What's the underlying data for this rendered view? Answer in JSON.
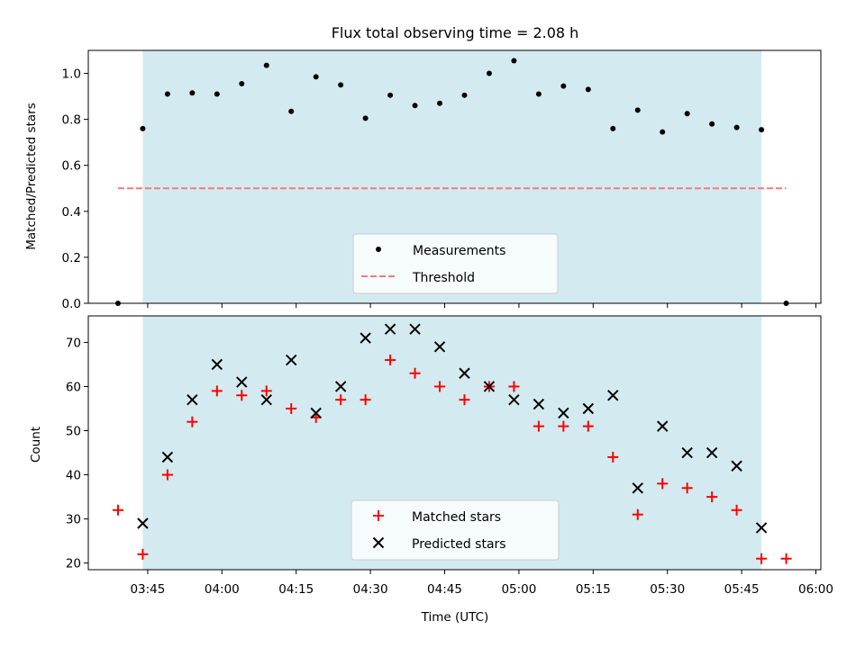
{
  "title": "Flux total observing time = 2.08 h",
  "colors": {
    "shade": "#d3eaf0",
    "threshold": "#f27b7b",
    "matched": "#ff0000",
    "predicted": "#000000",
    "measurement": "#000000"
  },
  "chart_data": [
    {
      "type": "scatter",
      "ylabel": "Matched/Predicted stars",
      "ylim": [
        0,
        1.1
      ],
      "yticks": [
        "0.0",
        "0.2",
        "0.4",
        "0.6",
        "0.8",
        "1.0"
      ],
      "observing_window": [
        "03:44",
        "05:49"
      ],
      "legend": {
        "placement": "lower-center",
        "entries": [
          "Measurements",
          "Threshold"
        ]
      },
      "threshold": {
        "name": "Threshold",
        "value": 0.5,
        "x_range": [
          "03:39",
          "05:54"
        ]
      },
      "series": [
        {
          "name": "Measurements",
          "x": [
            "03:39",
            "03:44",
            "03:49",
            "03:54",
            "03:59",
            "04:04",
            "04:09",
            "04:14",
            "04:19",
            "04:24",
            "04:29",
            "04:34",
            "04:39",
            "04:44",
            "04:49",
            "04:54",
            "04:59",
            "05:04",
            "05:09",
            "05:14",
            "05:19",
            "05:24",
            "05:29",
            "05:34",
            "05:39",
            "05:44",
            "05:49",
            "05:54"
          ],
          "values": [
            0.0,
            0.76,
            0.91,
            0.915,
            0.91,
            0.955,
            1.035,
            0.835,
            0.985,
            0.95,
            0.805,
            0.905,
            0.86,
            0.87,
            0.905,
            1.0,
            1.055,
            0.91,
            0.945,
            0.93,
            0.76,
            0.84,
            0.745,
            0.825,
            0.78,
            0.765,
            0.755,
            0.0
          ]
        }
      ]
    },
    {
      "type": "scatter",
      "xlabel": "Time (UTC)",
      "ylabel": "Count",
      "ylim": [
        18.5,
        76
      ],
      "yticks": [
        "20",
        "30",
        "40",
        "50",
        "60",
        "70"
      ],
      "xticks": [
        "03:45",
        "04:00",
        "04:15",
        "04:30",
        "04:45",
        "05:00",
        "05:15",
        "05:30",
        "05:45",
        "06:00"
      ],
      "observing_window": [
        "03:44",
        "05:49"
      ],
      "legend": {
        "placement": "lower-center",
        "entries": [
          "Matched stars",
          "Predicted stars"
        ]
      },
      "series": [
        {
          "name": "Matched stars",
          "x": [
            "03:39",
            "03:44",
            "03:49",
            "03:54",
            "03:59",
            "04:04",
            "04:09",
            "04:14",
            "04:19",
            "04:24",
            "04:29",
            "04:34",
            "04:39",
            "04:44",
            "04:49",
            "04:54",
            "04:59",
            "05:04",
            "05:09",
            "05:14",
            "05:19",
            "05:24",
            "05:29",
            "05:34",
            "05:39",
            "05:44",
            "05:49",
            "05:54"
          ],
          "values": [
            32,
            22,
            40,
            52,
            59,
            58,
            59,
            55,
            53,
            57,
            57,
            66,
            63,
            60,
            57,
            60,
            60,
            51,
            51,
            51,
            44,
            31,
            38,
            37,
            35,
            32,
            21,
            21
          ]
        },
        {
          "name": "Predicted stars",
          "x": [
            "03:44",
            "03:49",
            "03:54",
            "03:59",
            "04:04",
            "04:09",
            "04:14",
            "04:19",
            "04:24",
            "04:29",
            "04:34",
            "04:39",
            "04:44",
            "04:49",
            "04:54",
            "04:59",
            "05:04",
            "05:09",
            "05:14",
            "05:19",
            "05:24",
            "05:29",
            "05:34",
            "05:39",
            "05:44",
            "05:49"
          ],
          "values": [
            29,
            44,
            57,
            65,
            61,
            57,
            66,
            54,
            60,
            71,
            73,
            73,
            69,
            63,
            60,
            57,
            56,
            54,
            55,
            58,
            37,
            51,
            45,
            45,
            42,
            28
          ]
        }
      ]
    }
  ]
}
